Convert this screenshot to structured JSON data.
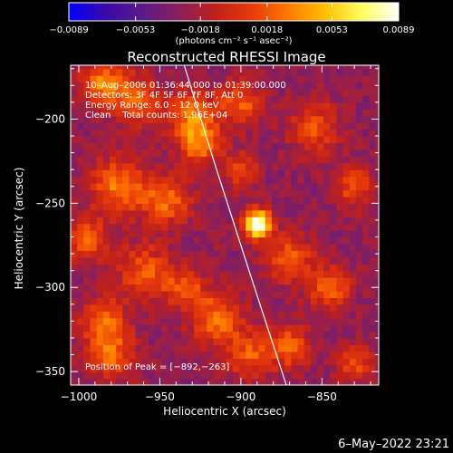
{
  "chart_data": {
    "type": "heatmap",
    "title": "Reconstructed RHESSI Image",
    "xlabel": "Heliocentric X (arcsec)",
    "ylabel": "Heliocentric Y (arcsec)",
    "xlim": [
      -1005,
      -815
    ],
    "ylim": [
      -358,
      -168
    ],
    "x_ticks": [
      -1000,
      -950,
      -900,
      -850
    ],
    "y_ticks": [
      -350,
      -300,
      -250,
      -200
    ],
    "x_tick_labels": [
      "−1000",
      "−950",
      "−900",
      "−850"
    ],
    "y_tick_labels": [
      "−350",
      "−300",
      "−250",
      "−200"
    ],
    "colorbar": {
      "min": -0.0089,
      "max": 0.0089,
      "ticks": [
        -0.0089,
        -0.0053,
        -0.0018,
        0.0018,
        0.0053,
        0.0089
      ],
      "tick_labels": [
        "−0.0089",
        "−0.0053",
        "−0.0018",
        "0.0018",
        "0.0053",
        "0.0089"
      ],
      "units_label": "(photons cm⁻² s⁻¹ asec⁻²)",
      "colormap": [
        "#0000ff",
        "#3a0aa8",
        "#5a1a8a",
        "#8a1f5a",
        "#c0201c",
        "#e83a0a",
        "#ff7a00",
        "#ffc000",
        "#ffff60",
        "#ffffff"
      ]
    },
    "info_lines": [
      "10–Aug–2006 01:36:44.000 to 01:39:00.000",
      "Detectors: 3F 4F 5F 6F 7F 8F, Att 0",
      "Energy Range: 6.0 – 12.0 keV",
      "Clean    Total counts: 1.96E+04"
    ],
    "peak_label": "Position of Peak = [−892,−263]",
    "peak": {
      "x": -892,
      "y": -263,
      "value": 0.0089
    },
    "limb_curve": [
      {
        "x": -935,
        "y": -168
      },
      {
        "x": -915,
        "y": -230
      },
      {
        "x": -895,
        "y": -290
      },
      {
        "x": -872,
        "y": -358
      }
    ],
    "sources": [
      {
        "x": -890,
        "y": -262,
        "amp": 1.0,
        "sigma": 6
      },
      {
        "x": -985,
        "y": -178,
        "amp": 0.38,
        "sigma": 9
      },
      {
        "x": -965,
        "y": -188,
        "amp": 0.32,
        "sigma": 10
      },
      {
        "x": -930,
        "y": -198,
        "amp": 0.34,
        "sigma": 11
      },
      {
        "x": -925,
        "y": -215,
        "amp": 0.3,
        "sigma": 9
      },
      {
        "x": -975,
        "y": -240,
        "amp": 0.36,
        "sigma": 12
      },
      {
        "x": -945,
        "y": -248,
        "amp": 0.34,
        "sigma": 10
      },
      {
        "x": -995,
        "y": -272,
        "amp": 0.3,
        "sigma": 9
      },
      {
        "x": -960,
        "y": -290,
        "amp": 0.28,
        "sigma": 12
      },
      {
        "x": -935,
        "y": -300,
        "amp": 0.26,
        "sigma": 9
      },
      {
        "x": -915,
        "y": -318,
        "amp": 0.34,
        "sigma": 11
      },
      {
        "x": -985,
        "y": -320,
        "amp": 0.3,
        "sigma": 10
      },
      {
        "x": -980,
        "y": -340,
        "amp": 0.3,
        "sigma": 10
      },
      {
        "x": -895,
        "y": -340,
        "amp": 0.28,
        "sigma": 10
      },
      {
        "x": -870,
        "y": -282,
        "amp": 0.3,
        "sigma": 10
      },
      {
        "x": -845,
        "y": -300,
        "amp": 0.32,
        "sigma": 9
      },
      {
        "x": -830,
        "y": -240,
        "amp": 0.26,
        "sigma": 9
      },
      {
        "x": -855,
        "y": -205,
        "amp": 0.26,
        "sigma": 11
      },
      {
        "x": -900,
        "y": -190,
        "amp": 0.3,
        "sigma": 9
      },
      {
        "x": -870,
        "y": -335,
        "amp": 0.3,
        "sigma": 9
      },
      {
        "x": -830,
        "y": -345,
        "amp": 0.26,
        "sigma": 8
      },
      {
        "x": -900,
        "y": -230,
        "amp": 0.24,
        "sigma": 8
      }
    ],
    "background_level": -0.32
  },
  "footer": {
    "timestamp": "6–May–2022 23:21"
  }
}
